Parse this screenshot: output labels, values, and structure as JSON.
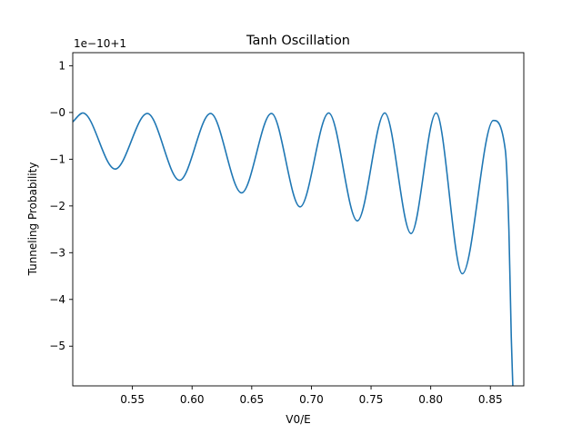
{
  "chart_data": {
    "type": "line",
    "title": "Tanh Oscillation",
    "xlabel": "V0/E",
    "ylabel": "Tunneling Probability",
    "offset_text": "1e−10+1",
    "xlim": [
      0.5,
      0.878
    ],
    "ylim": [
      -5.85,
      1.28
    ],
    "grid": false,
    "legend": "none",
    "line_color": "#1f77b4",
    "x_ticks": [
      {
        "value": 0.55,
        "label": "0.55"
      },
      {
        "value": 0.6,
        "label": "0.60"
      },
      {
        "value": 0.65,
        "label": "0.65"
      },
      {
        "value": 0.7,
        "label": "0.70"
      },
      {
        "value": 0.75,
        "label": "0.75"
      },
      {
        "value": 0.8,
        "label": "0.80"
      },
      {
        "value": 0.85,
        "label": "0.85"
      }
    ],
    "y_ticks": [
      {
        "value": 1,
        "label": "1"
      },
      {
        "value": 0,
        "label": "−0"
      },
      {
        "value": -1,
        "label": "−1"
      },
      {
        "value": -2,
        "label": "−2"
      },
      {
        "value": -3,
        "label": "−3"
      },
      {
        "value": -4,
        "label": "−4"
      },
      {
        "value": -5,
        "label": "−5"
      }
    ],
    "series": [
      {
        "x": [
          0.5,
          0.5085,
          0.5355,
          0.5625,
          0.5895,
          0.6155,
          0.6415,
          0.6665,
          0.6905,
          0.7145,
          0.7385,
          0.7615,
          0.7835,
          0.8045,
          0.8265,
          0.8525,
          0.8625,
          0.8655,
          0.8675,
          0.8688
        ],
        "y": [
          -0.2,
          -0.01,
          -1.21,
          -0.02,
          -1.45,
          -0.02,
          -1.72,
          -0.02,
          -2.02,
          -0.01,
          -2.32,
          -0.01,
          -2.59,
          -0.01,
          -3.45,
          -0.17,
          -0.8,
          -2.5,
          -4.8,
          -5.85
        ]
      }
    ]
  }
}
